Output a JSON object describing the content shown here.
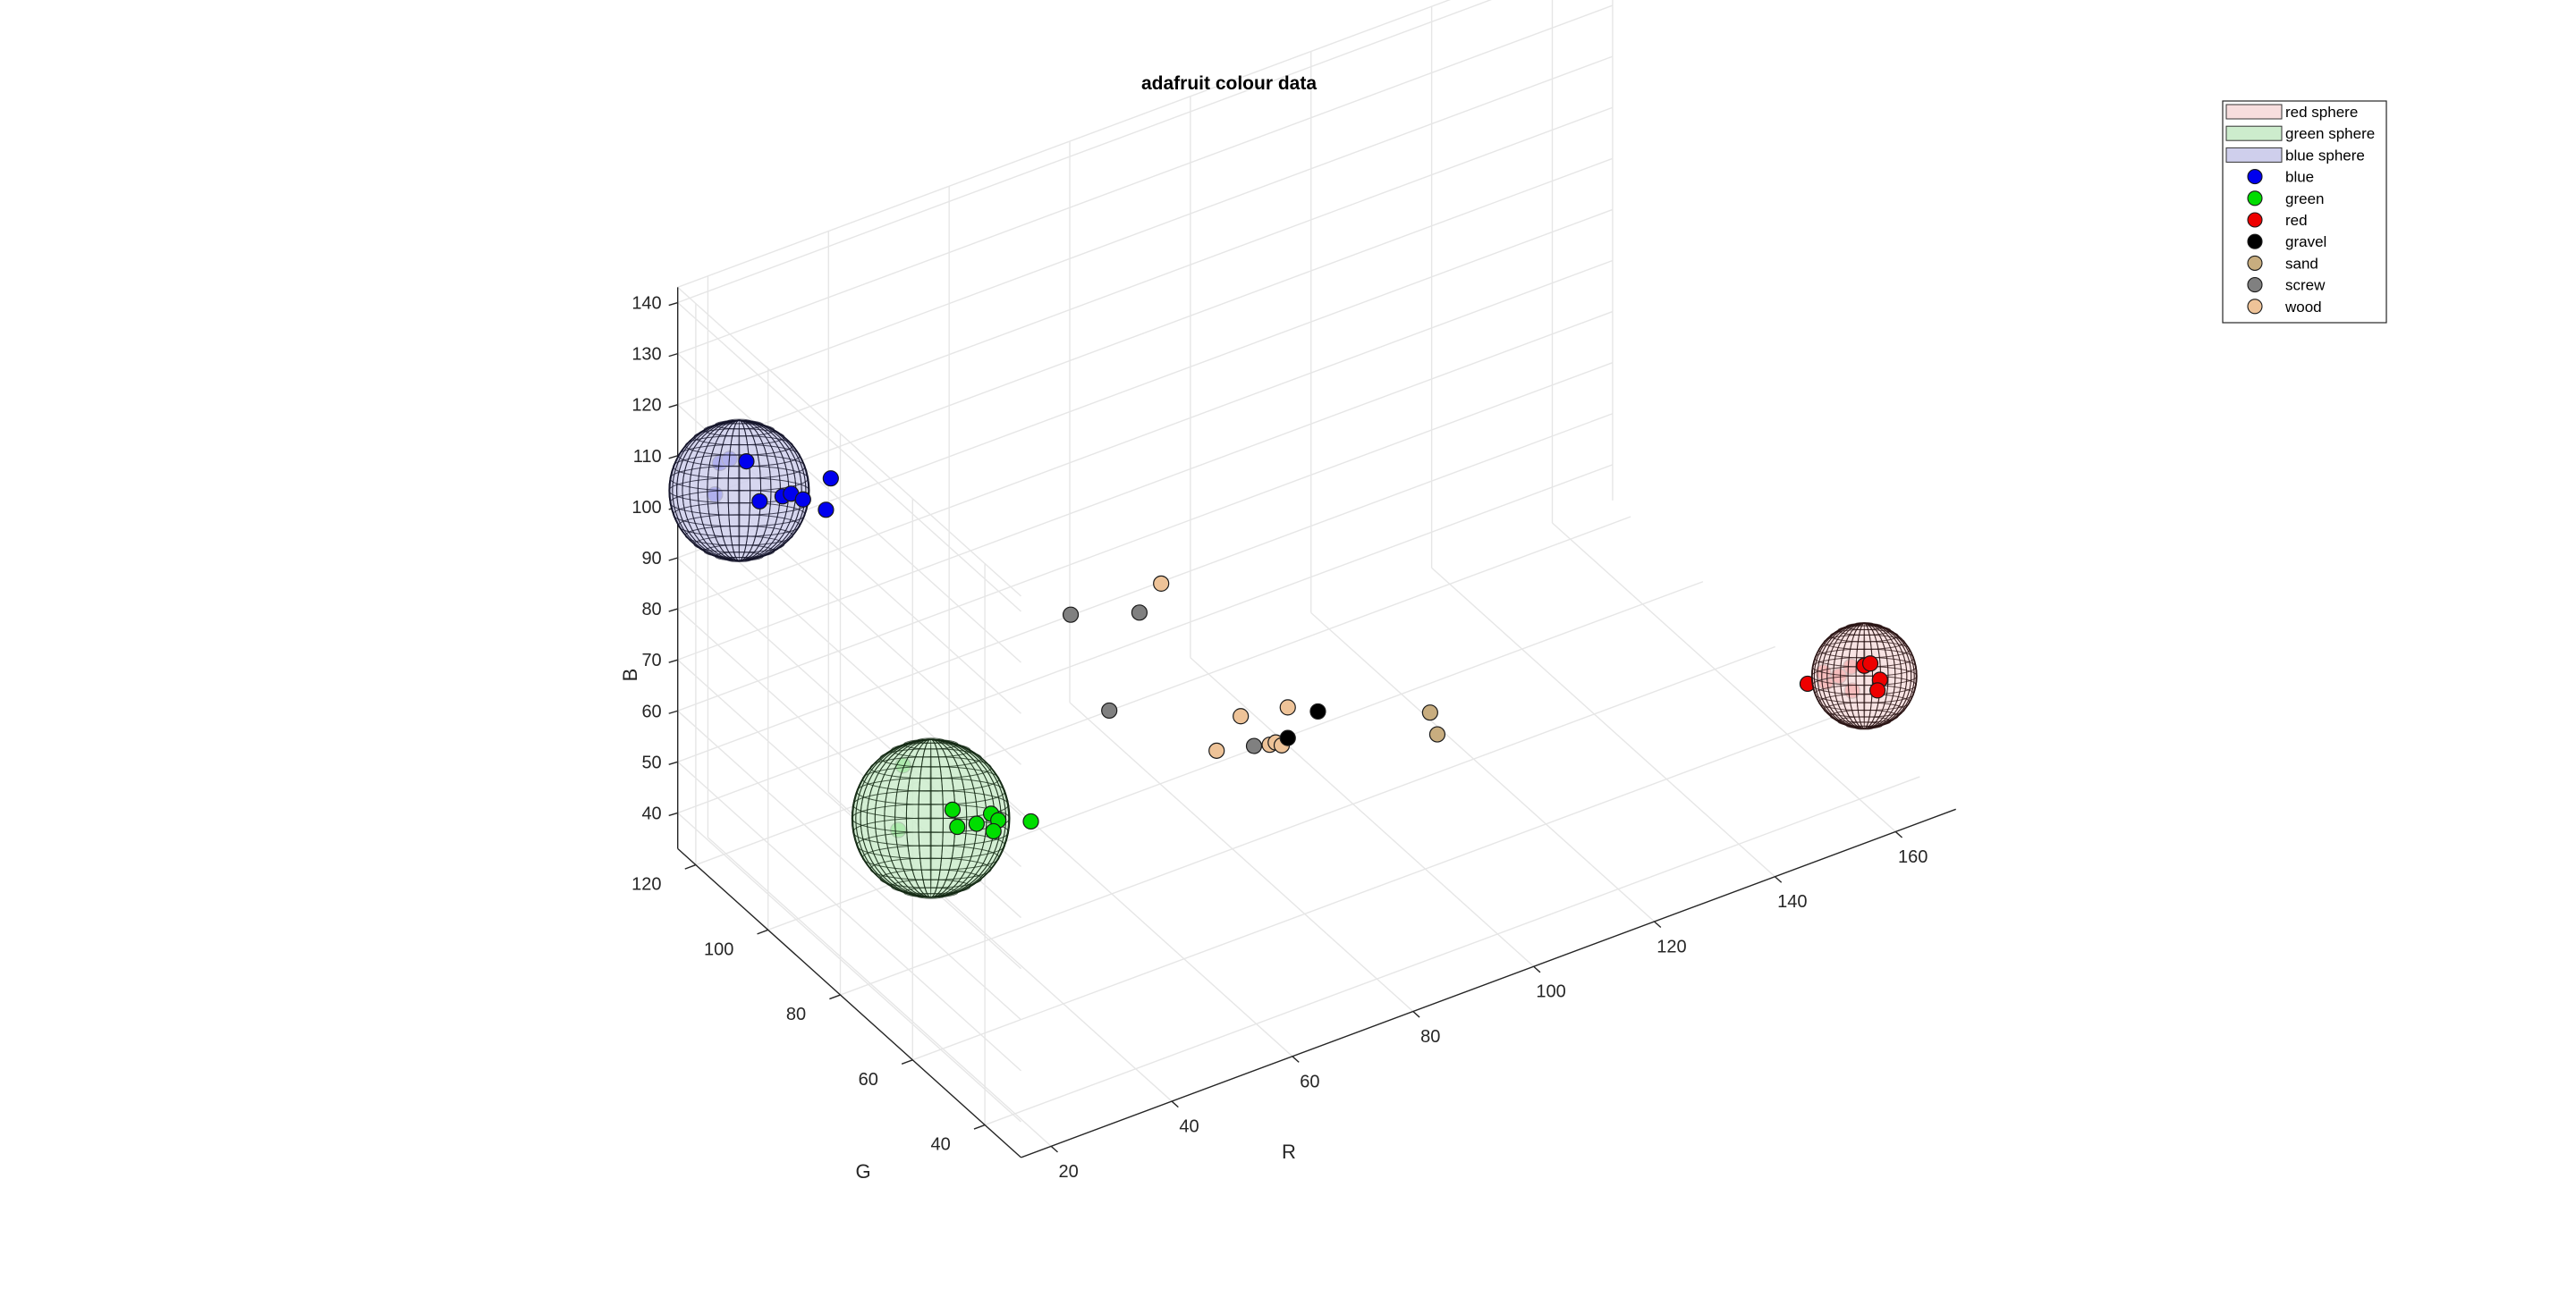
{
  "chart_data": {
    "type": "scatter",
    "title": "adafruit colour data",
    "xlabel": "R",
    "ylabel": "G",
    "zlabel": "B",
    "xlim": [
      15,
      170
    ],
    "ylim": [
      30,
      125
    ],
    "zlim": [
      33,
      143
    ],
    "xticks": [
      20,
      40,
      60,
      80,
      100,
      120,
      140,
      160
    ],
    "yticks": [
      40,
      60,
      80,
      100,
      120
    ],
    "zticks": [
      40,
      50,
      60,
      70,
      80,
      90,
      100,
      110,
      120,
      130,
      140
    ],
    "grid": true,
    "legend_location": "top-right",
    "spheres": [
      {
        "name": "red sphere",
        "center": [
          162,
          42,
          55
        ],
        "radius": 12,
        "face": "#f7dede",
        "edge": "#2a1414"
      },
      {
        "name": "green sphere",
        "center": [
          30,
          80,
          61
        ],
        "radius": 18,
        "face": "#cdeccd",
        "edge": "#142a14"
      },
      {
        "name": "blue sphere",
        "center": [
          15,
          108,
          114
        ],
        "radius": 16,
        "face": "#cfcfec",
        "edge": "#14142a"
      }
    ],
    "series": [
      {
        "name": "blue",
        "color": "#0000ee",
        "points": [
          [
            11,
            108,
            115
          ],
          [
            13,
            110,
            119
          ],
          [
            14,
            109,
            120
          ],
          [
            15,
            106,
            121
          ],
          [
            18,
            101,
            116
          ],
          [
            20,
            102,
            115
          ],
          [
            22,
            102,
            113
          ],
          [
            24,
            99,
            112
          ],
          [
            26,
            101,
            116
          ],
          [
            16,
            104,
            114
          ]
        ]
      },
      {
        "name": "green",
        "color": "#00dd00",
        "points": [
          [
            24,
            79,
            62
          ],
          [
            29,
            86,
            68
          ],
          [
            32,
            76,
            61
          ],
          [
            33,
            79,
            62
          ],
          [
            34,
            74,
            62
          ],
          [
            37,
            73,
            62
          ],
          [
            35,
            71,
            62
          ],
          [
            37,
            75,
            62
          ],
          [
            40,
            69,
            63
          ]
        ]
      },
      {
        "name": "red",
        "color": "#ee0000",
        "points": [
          [
            157,
            45,
            56
          ],
          [
            159,
            44,
            55
          ],
          [
            161,
            44,
            56
          ],
          [
            162,
            42,
            57
          ],
          [
            163,
            42,
            57
          ],
          [
            160,
            42,
            53
          ],
          [
            163,
            40,
            53
          ],
          [
            158,
            46,
            53
          ],
          [
            155,
            46,
            54
          ],
          [
            164,
            41,
            54
          ]
        ]
      },
      {
        "name": "gravel",
        "color": "#000000",
        "points": [
          [
            84,
            63,
            69
          ],
          [
            79,
            63,
            66
          ]
        ]
      },
      {
        "name": "sand",
        "color": "#c8ad7f",
        "points": [
          [
            99,
            57,
            66
          ],
          [
            99,
            55,
            63
          ]
        ]
      },
      {
        "name": "screw",
        "color": "#808080",
        "points": [
          [
            49,
            73,
            97
          ],
          [
            58,
            69,
            96
          ],
          [
            53,
            69,
            79
          ],
          [
            74,
            64,
            66
          ]
        ]
      },
      {
        "name": "wood",
        "color": "#eec398",
        "points": [
          [
            61,
            68,
            101
          ],
          [
            73,
            66,
            71
          ],
          [
            79,
            63,
            72
          ],
          [
            69,
            66,
            66
          ],
          [
            76,
            63,
            66
          ],
          [
            77,
            63,
            66
          ],
          [
            78,
            63,
            65
          ]
        ]
      }
    ]
  }
}
